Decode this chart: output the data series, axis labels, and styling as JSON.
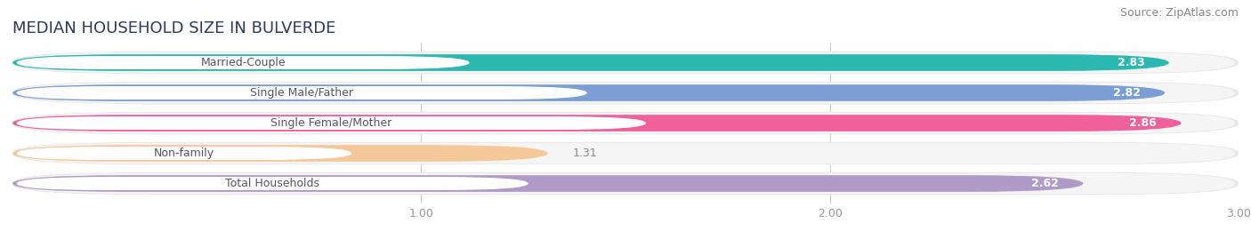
{
  "title": "MEDIAN HOUSEHOLD SIZE IN BULVERDE",
  "source": "Source: ZipAtlas.com",
  "categories": [
    "Married-Couple",
    "Single Male/Father",
    "Single Female/Mother",
    "Non-family",
    "Total Households"
  ],
  "values": [
    2.83,
    2.82,
    2.86,
    1.31,
    2.62
  ],
  "bar_colors": [
    "#2ab8b0",
    "#7b9fd4",
    "#f0609a",
    "#f5c89a",
    "#b09ac8"
  ],
  "bg_color_outer": "#e8e8e8",
  "bg_color_inner": "#f5f5f5",
  "label_text_color": "#555566",
  "value_color_light": "#ffffff",
  "value_color_dark": "#888888",
  "title_color": "#2d3a5a",
  "source_color": "#888888",
  "xlim": [
    0,
    3.0
  ],
  "xticks": [
    1.0,
    2.0,
    3.0
  ],
  "title_fontsize": 13,
  "source_fontsize": 9,
  "bar_label_fontsize": 9,
  "value_fontsize": 9,
  "background_color": "#ffffff",
  "grid_color": "#cccccc"
}
